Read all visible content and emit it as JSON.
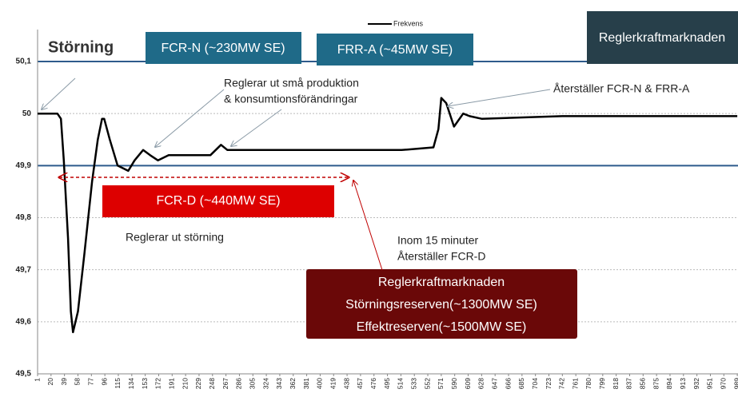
{
  "chart_data": {
    "type": "line",
    "series": [
      {
        "name": "Frekvens",
        "color": "#000000",
        "x": [
          1,
          29,
          34,
          38,
          44,
          48,
          51,
          58,
          67,
          78,
          86,
          92,
          95,
          103,
          114,
          129,
          138,
          150,
          160,
          171,
          186,
          220,
          245,
          260,
          269,
          288,
          345,
          424,
          515,
          560,
          567,
          571,
          578,
          589,
          602,
          611,
          628,
          742,
          855,
          989
        ],
        "values": [
          50.0,
          50.0,
          49.99,
          49.91,
          49.76,
          49.62,
          49.58,
          49.62,
          49.73,
          49.87,
          49.95,
          49.99,
          49.99,
          49.95,
          49.9,
          49.89,
          49.91,
          49.93,
          49.92,
          49.91,
          49.92,
          49.92,
          49.92,
          49.94,
          49.93,
          49.93,
          49.93,
          49.93,
          49.93,
          49.935,
          49.97,
          50.03,
          50.02,
          49.975,
          50.0,
          49.995,
          49.99,
          49.995,
          49.995,
          49.995
        ]
      }
    ],
    "xlim": [
      1,
      990
    ],
    "xticks": [
      1,
      20,
      39,
      58,
      77,
      96,
      115,
      134,
      153,
      172,
      191,
      210,
      229,
      248,
      267,
      286,
      305,
      324,
      343,
      362,
      381,
      400,
      419,
      438,
      457,
      476,
      495,
      514,
      533,
      552,
      571,
      590,
      609,
      628,
      647,
      666,
      685,
      704,
      723,
      742,
      761,
      780,
      799,
      818,
      837,
      856,
      875,
      894,
      913,
      932,
      951,
      970,
      989
    ],
    "ylim": [
      49.5,
      50.1
    ],
    "yticks": [
      {
        "value": 49.5,
        "label": "49,5"
      },
      {
        "value": 49.6,
        "label": "49,6"
      },
      {
        "value": 49.7,
        "label": "49,7"
      },
      {
        "value": 49.8,
        "label": "49,8"
      },
      {
        "value": 49.9,
        "label": "49,9"
      },
      {
        "value": 50.0,
        "label": "50"
      },
      {
        "value": 50.1,
        "label": "50,1"
      }
    ],
    "grid": true,
    "reference_lines": [
      50.1,
      49.9
    ],
    "reference_color": "#2e5b8c",
    "annotations": [
      "Störning",
      "FCR-N (~230MW SE)",
      "FRR-A (~45MW SE)",
      "Reglerkraftmarknaden",
      "Reglerar ut små produktion",
      "& konsumtionsförändringar",
      "Återställer FCR-N & FRR-A",
      "FCR-D (~440MW SE)",
      "Reglerar ut störning",
      "Inom 15 minuter",
      "Återställer FCR-D",
      "Reglerkraftmarknaden",
      "Störningsreserven(~1300MW SE)",
      "Effektreserven(~1500MW SE)"
    ]
  }
}
